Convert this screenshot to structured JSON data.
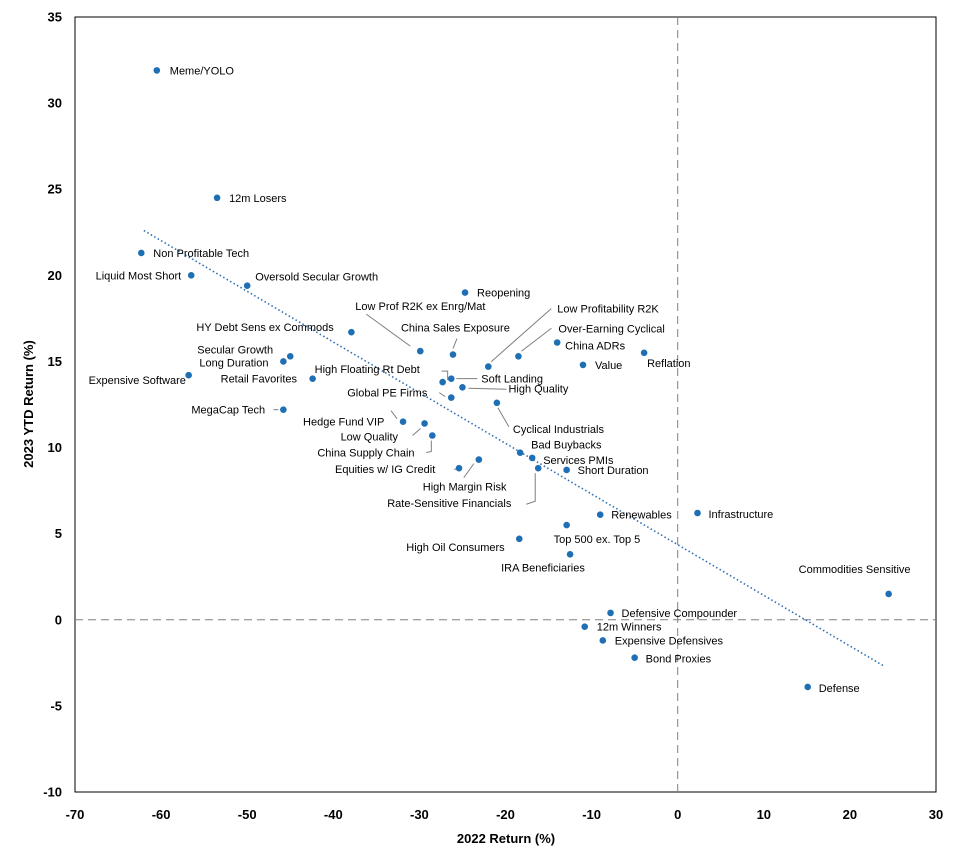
{
  "chart_data": {
    "type": "scatter",
    "title": "",
    "xlabel": "2022 Return (%)",
    "ylabel": "2023 YTD Return (%)",
    "xlim": [
      -70,
      30
    ],
    "ylim": [
      -10,
      35
    ],
    "xticks": [
      -70,
      -60,
      -50,
      -40,
      -30,
      -20,
      -10,
      0,
      10,
      20,
      30
    ],
    "yticks": [
      -10,
      -5,
      0,
      5,
      10,
      15,
      20,
      25,
      30,
      35
    ],
    "point_color": "#1f6fb5",
    "trendline": {
      "style": "dotted",
      "color": "#2e6fb7",
      "from": [
        -62,
        22.6
      ],
      "to": [
        24,
        -2.7
      ]
    },
    "reference_lines": {
      "x": 0,
      "y": 0,
      "style": "dashed",
      "color": "#808080"
    },
    "points": [
      {
        "label": "Meme/YOLO",
        "x": -60.5,
        "y": 31.9
      },
      {
        "label": "12m Losers",
        "x": -53.5,
        "y": 24.5
      },
      {
        "label": "Non Profitable Tech",
        "x": -62.3,
        "y": 21.3
      },
      {
        "label": "Liquid Most Short",
        "x": -56.5,
        "y": 20.0
      },
      {
        "label": "Oversold Secular Growth",
        "x": -50.0,
        "y": 19.4
      },
      {
        "label": "Reopening",
        "x": -24.7,
        "y": 19.0
      },
      {
        "label": "Low Prof R2K ex Enrg/Mat",
        "x": -29.9,
        "y": 15.6
      },
      {
        "label": "HY Debt Sens ex Commods",
        "x": -37.9,
        "y": 16.7
      },
      {
        "label": "China Sales Exposure",
        "x": -26.1,
        "y": 15.4
      },
      {
        "label": "Low Profitability R2K",
        "x": -22.0,
        "y": 14.7
      },
      {
        "label": "Over-Earning Cyclical",
        "x": -18.5,
        "y": 15.3
      },
      {
        "label": "China ADRs",
        "x": -14.0,
        "y": 16.1
      },
      {
        "label": "Reflation",
        "x": -3.9,
        "y": 15.5
      },
      {
        "label": "Value",
        "x": -11.0,
        "y": 14.8
      },
      {
        "label": "Secular Growth",
        "x": -45.0,
        "y": 15.3
      },
      {
        "label": "Long Duration",
        "x": -45.8,
        "y": 15.0
      },
      {
        "label": "Retail Favorites",
        "x": -42.4,
        "y": 14.0
      },
      {
        "label": "Expensive Software",
        "x": -56.8,
        "y": 14.2
      },
      {
        "label": "High Floating Rt Debt",
        "x": -27.3,
        "y": 13.8
      },
      {
        "label": "Soft Landing",
        "x": -26.3,
        "y": 14.0
      },
      {
        "label": "High Quality",
        "x": -25.0,
        "y": 13.5
      },
      {
        "label": "Global PE Firms",
        "x": -26.3,
        "y": 12.9
      },
      {
        "label": "Cyclical Industrials",
        "x": -21.0,
        "y": 12.6
      },
      {
        "label": "MegaCap Tech",
        "x": -45.8,
        "y": 12.2
      },
      {
        "label": "Hedge Fund VIP",
        "x": -31.9,
        "y": 11.5
      },
      {
        "label": "Low Quality",
        "x": -29.4,
        "y": 11.4
      },
      {
        "label": "China Supply Chain",
        "x": -28.5,
        "y": 10.7
      },
      {
        "label": "Bad Buybacks",
        "x": -18.3,
        "y": 9.7
      },
      {
        "label": "Services PMIs",
        "x": -16.9,
        "y": 9.4
      },
      {
        "label": "Equities w/ IG Credit",
        "x": -25.4,
        "y": 8.8
      },
      {
        "label": "High Margin Risk",
        "x": -23.1,
        "y": 9.3
      },
      {
        "label": "Rate-Sensitive Financials",
        "x": -16.2,
        "y": 8.8
      },
      {
        "label": "Short Duration",
        "x": -12.9,
        "y": 8.7
      },
      {
        "label": "Renewables",
        "x": -9.0,
        "y": 6.1
      },
      {
        "label": "Infrastructure",
        "x": 2.3,
        "y": 6.2
      },
      {
        "label": "Top 500 ex. Top 5",
        "x": -12.9,
        "y": 5.5
      },
      {
        "label": "High Oil Consumers",
        "x": -18.4,
        "y": 4.7
      },
      {
        "label": "IRA Beneficiaries",
        "x": -12.5,
        "y": 3.8
      },
      {
        "label": "Commodities Sensitive",
        "x": 24.5,
        "y": 1.5
      },
      {
        "label": "Defensive Compounder",
        "x": -7.8,
        "y": 0.4
      },
      {
        "label": "12m Winners",
        "x": -10.8,
        "y": -0.4
      },
      {
        "label": "Expensive Defensives",
        "x": -8.7,
        "y": -1.2
      },
      {
        "label": "Bond Proxies",
        "x": -5.0,
        "y": -2.2
      },
      {
        "label": "Defense",
        "x": 15.1,
        "y": -3.9
      }
    ]
  }
}
